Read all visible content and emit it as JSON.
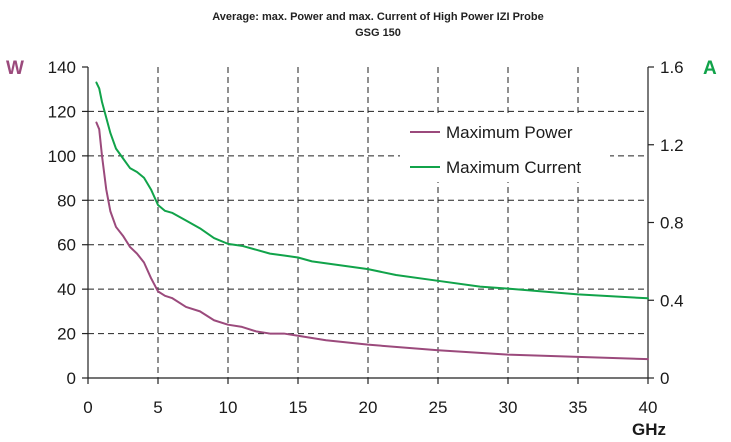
{
  "chart_data": {
    "type": "line",
    "title": "Average: max. Power and max. Current of High Power IZI Probe",
    "subtitle": "GSG 150",
    "xlabel": "GHz",
    "ylabel_left": "W",
    "ylabel_right": "A",
    "xlim": [
      0,
      40
    ],
    "ylim_left": [
      0,
      140
    ],
    "ylim_right": [
      0,
      1.6
    ],
    "x_ticks": [
      "0",
      "5",
      "10",
      "15",
      "20",
      "25",
      "30",
      "35",
      "40"
    ],
    "y_left_ticks": [
      "0",
      "20",
      "40",
      "60",
      "80",
      "100",
      "120",
      "140"
    ],
    "y_right_ticks": [
      "0",
      "0.4",
      "0.8",
      "1.2",
      "1.6"
    ],
    "grid": true,
    "legend_position": "upper-right",
    "colors": {
      "power": "#9b4a7c",
      "current": "#11a34a",
      "left_axis_label": "#9b4a7c",
      "right_axis_label": "#11a34a"
    },
    "series": [
      {
        "name": "Maximum Power",
        "axis": "left",
        "x": [
          0.6,
          0.8,
          1,
          1.3,
          1.6,
          2,
          2.5,
          3,
          3.5,
          4,
          4.5,
          5,
          5.5,
          6,
          7,
          8,
          9,
          10,
          11,
          12,
          13,
          14,
          15,
          17,
          20,
          25,
          30,
          35,
          40
        ],
        "y": [
          115,
          112,
          100,
          85,
          75,
          68,
          64,
          59,
          56,
          52,
          45,
          39,
          37,
          36,
          32,
          30,
          26,
          24,
          23,
          21,
          20,
          20,
          19,
          17,
          15,
          12.5,
          10.5,
          9.5,
          8.5
        ]
      },
      {
        "name": "Maximum Current",
        "axis": "right",
        "x": [
          0.6,
          0.8,
          1,
          1.3,
          1.6,
          2,
          2.5,
          3,
          3.5,
          4,
          4.5,
          5,
          5.5,
          6,
          6.5,
          7,
          8,
          9,
          10,
          11,
          12,
          13,
          14,
          15,
          16,
          18,
          20,
          22,
          25,
          28,
          30,
          35,
          40
        ],
        "y": [
          1.52,
          1.49,
          1.42,
          1.34,
          1.26,
          1.18,
          1.13,
          1.08,
          1.06,
          1.03,
          0.97,
          0.89,
          0.86,
          0.85,
          0.83,
          0.81,
          0.77,
          0.72,
          0.69,
          0.68,
          0.66,
          0.64,
          0.63,
          0.62,
          0.6,
          0.58,
          0.56,
          0.53,
          0.5,
          0.47,
          0.46,
          0.43,
          0.41
        ]
      }
    ]
  }
}
